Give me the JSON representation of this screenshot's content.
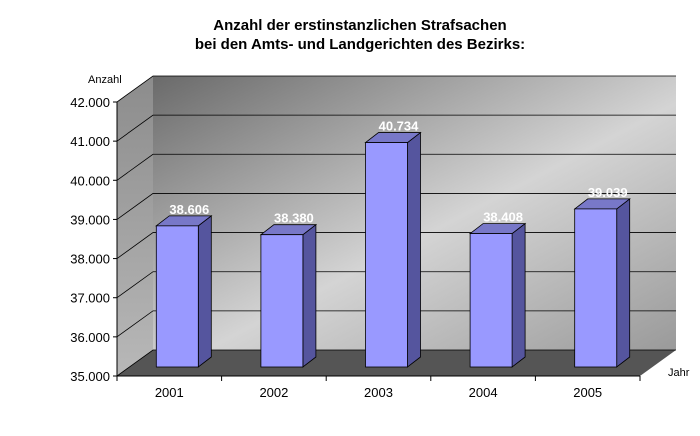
{
  "chart_data": {
    "type": "bar",
    "title_lines": [
      "Anzahl der erstinstanzlichen Strafsachen",
      "bei den Amts- und Landgerichten des Bezirks:"
    ],
    "ylabel": "Anzahl",
    "xlabel": "Jahr",
    "categories": [
      "2001",
      "2002",
      "2003",
      "2004",
      "2005"
    ],
    "values": [
      38606,
      38380,
      40734,
      38408,
      39039
    ],
    "value_labels": [
      "38.606",
      "38.380",
      "40.734",
      "38.408",
      "39.039"
    ],
    "ylim": [
      35000,
      42000
    ],
    "yticks": [
      35000,
      36000,
      37000,
      38000,
      39000,
      40000,
      41000,
      42000
    ],
    "ytick_labels": [
      "35.000",
      "36.000",
      "37.000",
      "38.000",
      "39.000",
      "40.000",
      "41.000",
      "42.000"
    ],
    "grid": true,
    "legend": "none",
    "style": "3d",
    "colors": {
      "bar_front": "#9999FF",
      "bar_side": "#55559E",
      "bar_top": "#7878C8",
      "floor": "#555555",
      "wall_light": "#d4d4d4",
      "wall_dark": "#6a6a6a"
    }
  }
}
